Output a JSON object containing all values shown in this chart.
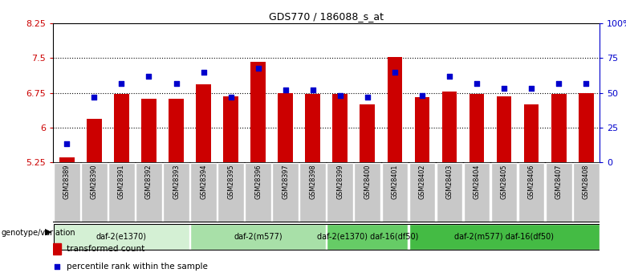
{
  "title": "GDS770 / 186088_s_at",
  "samples": [
    "GSM28389",
    "GSM28390",
    "GSM28391",
    "GSM28392",
    "GSM28393",
    "GSM28394",
    "GSM28395",
    "GSM28396",
    "GSM28397",
    "GSM28398",
    "GSM28399",
    "GSM28400",
    "GSM28401",
    "GSM28402",
    "GSM28403",
    "GSM28404",
    "GSM28405",
    "GSM28406",
    "GSM28407",
    "GSM28408"
  ],
  "transformed_count": [
    5.35,
    6.18,
    6.72,
    6.62,
    6.62,
    6.93,
    6.68,
    7.42,
    6.75,
    6.72,
    6.72,
    6.5,
    7.52,
    6.65,
    6.78,
    6.73,
    6.68,
    6.5,
    6.73,
    6.75
  ],
  "percentile_rank": [
    13,
    47,
    57,
    62,
    57,
    65,
    47,
    68,
    52,
    52,
    48,
    47,
    65,
    48,
    62,
    57,
    53,
    53,
    57,
    57
  ],
  "ylim_left": [
    5.25,
    8.25
  ],
  "ylim_right": [
    0,
    100
  ],
  "yticks_left": [
    5.25,
    6.0,
    6.75,
    7.5,
    8.25
  ],
  "ytick_labels_left": [
    "5.25",
    "6",
    "6.75",
    "7.5",
    "8.25"
  ],
  "yticks_right": [
    0,
    25,
    50,
    75,
    100
  ],
  "ytick_labels_right": [
    "0",
    "25",
    "50",
    "75",
    "100%"
  ],
  "bar_color": "#cc0000",
  "dot_color": "#0000cc",
  "groups": [
    {
      "label": "daf-2(e1370)",
      "start": 0,
      "end": 4,
      "color": "#d4f0d4"
    },
    {
      "label": "daf-2(m577)",
      "start": 5,
      "end": 9,
      "color": "#a8e0a8"
    },
    {
      "label": "daf-2(e1370) daf-16(df50)",
      "start": 10,
      "end": 12,
      "color": "#66cc66"
    },
    {
      "label": "daf-2(m577) daf-16(df50)",
      "start": 13,
      "end": 19,
      "color": "#44bb44"
    }
  ],
  "group_row_label": "genotype/variation",
  "legend_bar_label": "transformed count",
  "legend_dot_label": "percentile rank within the sample",
  "sample_box_color": "#c8c8c8",
  "sample_box_edge_color": "#ffffff"
}
